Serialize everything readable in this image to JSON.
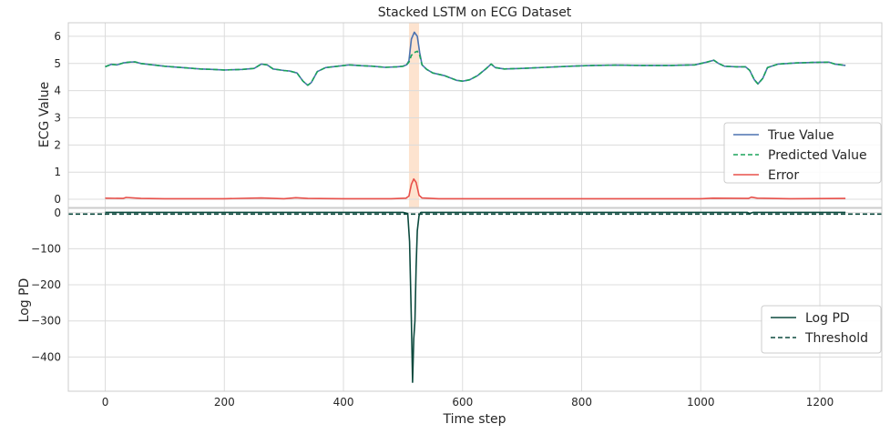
{
  "chart_data": [
    {
      "type": "line",
      "title": "Stacked LSTM on ECG Dataset",
      "xlabel": "",
      "ylabel": "ECG Value",
      "xlim": [
        -62,
        1304
      ],
      "ylim": [
        -0.3,
        6.5
      ],
      "xticks": [
        0,
        200,
        400,
        600,
        800,
        1000,
        1200
      ],
      "yticks": [
        0,
        1,
        2,
        3,
        4,
        5,
        6
      ],
      "grid": true,
      "legend_position": "center-right",
      "highlight_span": [
        510,
        527
      ],
      "highlight_color": "#fde3cf",
      "series": [
        {
          "name": "True Value",
          "color": "#4c72b0",
          "style": "solid",
          "points": [
            [
              0,
              4.88
            ],
            [
              10,
              4.97
            ],
            [
              20,
              4.95
            ],
            [
              30,
              5.02
            ],
            [
              40,
              5.05
            ],
            [
              50,
              5.06
            ],
            [
              60,
              5.0
            ],
            [
              80,
              4.95
            ],
            [
              100,
              4.9
            ],
            [
              130,
              4.85
            ],
            [
              160,
              4.8
            ],
            [
              180,
              4.78
            ],
            [
              200,
              4.76
            ],
            [
              230,
              4.78
            ],
            [
              250,
              4.82
            ],
            [
              262,
              4.98
            ],
            [
              272,
              4.95
            ],
            [
              282,
              4.8
            ],
            [
              300,
              4.74
            ],
            [
              310,
              4.72
            ],
            [
              322,
              4.65
            ],
            [
              332,
              4.35
            ],
            [
              340,
              4.2
            ],
            [
              346,
              4.3
            ],
            [
              356,
              4.7
            ],
            [
              370,
              4.85
            ],
            [
              390,
              4.9
            ],
            [
              410,
              4.95
            ],
            [
              430,
              4.92
            ],
            [
              450,
              4.9
            ],
            [
              470,
              4.86
            ],
            [
              490,
              4.88
            ],
            [
              500,
              4.9
            ],
            [
              506,
              4.95
            ],
            [
              510,
              5.1
            ],
            [
              514,
              5.9
            ],
            [
              519,
              6.15
            ],
            [
              524,
              6.0
            ],
            [
              528,
              5.4
            ],
            [
              532,
              4.95
            ],
            [
              540,
              4.78
            ],
            [
              550,
              4.65
            ],
            [
              570,
              4.55
            ],
            [
              590,
              4.38
            ],
            [
              600,
              4.35
            ],
            [
              612,
              4.4
            ],
            [
              625,
              4.55
            ],
            [
              640,
              4.82
            ],
            [
              648,
              4.98
            ],
            [
              655,
              4.85
            ],
            [
              670,
              4.8
            ],
            [
              700,
              4.82
            ],
            [
              740,
              4.86
            ],
            [
              780,
              4.9
            ],
            [
              820,
              4.93
            ],
            [
              860,
              4.94
            ],
            [
              900,
              4.93
            ],
            [
              950,
              4.93
            ],
            [
              990,
              4.95
            ],
            [
              1010,
              5.05
            ],
            [
              1022,
              5.12
            ],
            [
              1030,
              5.0
            ],
            [
              1040,
              4.9
            ],
            [
              1060,
              4.88
            ],
            [
              1075,
              4.88
            ],
            [
              1082,
              4.75
            ],
            [
              1090,
              4.4
            ],
            [
              1096,
              4.25
            ],
            [
              1104,
              4.45
            ],
            [
              1112,
              4.85
            ],
            [
              1130,
              4.98
            ],
            [
              1160,
              5.02
            ],
            [
              1190,
              5.04
            ],
            [
              1215,
              5.05
            ],
            [
              1225,
              4.98
            ],
            [
              1243,
              4.93
            ]
          ]
        },
        {
          "name": "Predicted Value",
          "color": "#1aa35a",
          "style": "dashed",
          "points": [
            [
              0,
              4.88
            ],
            [
              10,
              4.97
            ],
            [
              20,
              4.95
            ],
            [
              30,
              5.02
            ],
            [
              40,
              5.05
            ],
            [
              50,
              5.06
            ],
            [
              60,
              5.0
            ],
            [
              80,
              4.95
            ],
            [
              100,
              4.9
            ],
            [
              130,
              4.85
            ],
            [
              160,
              4.8
            ],
            [
              180,
              4.78
            ],
            [
              200,
              4.76
            ],
            [
              230,
              4.78
            ],
            [
              250,
              4.82
            ],
            [
              262,
              4.98
            ],
            [
              272,
              4.95
            ],
            [
              282,
              4.8
            ],
            [
              300,
              4.74
            ],
            [
              310,
              4.72
            ],
            [
              322,
              4.65
            ],
            [
              332,
              4.35
            ],
            [
              340,
              4.2
            ],
            [
              346,
              4.3
            ],
            [
              356,
              4.7
            ],
            [
              370,
              4.85
            ],
            [
              390,
              4.9
            ],
            [
              410,
              4.95
            ],
            [
              430,
              4.92
            ],
            [
              450,
              4.9
            ],
            [
              470,
              4.86
            ],
            [
              490,
              4.88
            ],
            [
              500,
              4.9
            ],
            [
              506,
              4.95
            ],
            [
              510,
              5.05
            ],
            [
              514,
              5.3
            ],
            [
              519,
              5.4
            ],
            [
              524,
              5.45
            ],
            [
              528,
              5.3
            ],
            [
              532,
              4.95
            ],
            [
              540,
              4.78
            ],
            [
              550,
              4.65
            ],
            [
              570,
              4.55
            ],
            [
              590,
              4.38
            ],
            [
              600,
              4.35
            ],
            [
              612,
              4.4
            ],
            [
              625,
              4.55
            ],
            [
              640,
              4.82
            ],
            [
              648,
              4.98
            ],
            [
              655,
              4.85
            ],
            [
              670,
              4.8
            ],
            [
              700,
              4.82
            ],
            [
              740,
              4.86
            ],
            [
              780,
              4.9
            ],
            [
              820,
              4.93
            ],
            [
              860,
              4.94
            ],
            [
              900,
              4.93
            ],
            [
              950,
              4.93
            ],
            [
              990,
              4.95
            ],
            [
              1010,
              5.05
            ],
            [
              1022,
              5.12
            ],
            [
              1030,
              5.0
            ],
            [
              1040,
              4.9
            ],
            [
              1060,
              4.88
            ],
            [
              1075,
              4.88
            ],
            [
              1082,
              4.75
            ],
            [
              1090,
              4.4
            ],
            [
              1096,
              4.25
            ],
            [
              1104,
              4.45
            ],
            [
              1112,
              4.85
            ],
            [
              1130,
              4.98
            ],
            [
              1160,
              5.02
            ],
            [
              1190,
              5.04
            ],
            [
              1215,
              5.05
            ],
            [
              1225,
              4.98
            ],
            [
              1243,
              4.93
            ]
          ]
        },
        {
          "name": "Error",
          "color": "#e8504a",
          "style": "solid",
          "points": [
            [
              0,
              0.04
            ],
            [
              30,
              0.03
            ],
            [
              35,
              0.07
            ],
            [
              60,
              0.03
            ],
            [
              100,
              0.02
            ],
            [
              200,
              0.02
            ],
            [
              262,
              0.05
            ],
            [
              300,
              0.02
            ],
            [
              320,
              0.06
            ],
            [
              340,
              0.03
            ],
            [
              400,
              0.02
            ],
            [
              480,
              0.02
            ],
            [
              505,
              0.04
            ],
            [
              510,
              0.12
            ],
            [
              514,
              0.55
            ],
            [
              518,
              0.75
            ],
            [
              522,
              0.62
            ],
            [
              527,
              0.15
            ],
            [
              532,
              0.05
            ],
            [
              560,
              0.02
            ],
            [
              600,
              0.02
            ],
            [
              700,
              0.02
            ],
            [
              800,
              0.02
            ],
            [
              900,
              0.02
            ],
            [
              1000,
              0.02
            ],
            [
              1020,
              0.04
            ],
            [
              1080,
              0.03
            ],
            [
              1085,
              0.08
            ],
            [
              1095,
              0.04
            ],
            [
              1150,
              0.02
            ],
            [
              1243,
              0.03
            ]
          ]
        }
      ]
    },
    {
      "type": "line",
      "title": "",
      "xlabel": "Time step",
      "ylabel": "Log PD",
      "xlim": [
        -62,
        1304
      ],
      "ylim": [
        -495,
        12
      ],
      "xticks": [
        0,
        200,
        400,
        600,
        800,
        1000,
        1200
      ],
      "yticks": [
        0,
        -100,
        -200,
        -300,
        -400
      ],
      "grid": true,
      "legend_position": "center-right",
      "series": [
        {
          "name": "Log PD",
          "color": "#0d4a3e",
          "style": "solid",
          "points": [
            [
              0,
              1
            ],
            [
              100,
              1
            ],
            [
              200,
              1
            ],
            [
              300,
              1
            ],
            [
              400,
              1
            ],
            [
              500,
              1
            ],
            [
              508,
              -2
            ],
            [
              511,
              -80
            ],
            [
              514,
              -300
            ],
            [
              516,
              -470
            ],
            [
              518,
              -350
            ],
            [
              520,
              -300
            ],
            [
              522,
              -150
            ],
            [
              524,
              -50
            ],
            [
              527,
              -8
            ],
            [
              530,
              1
            ],
            [
              560,
              1
            ],
            [
              600,
              1
            ],
            [
              700,
              1
            ],
            [
              800,
              1
            ],
            [
              900,
              1
            ],
            [
              1000,
              1
            ],
            [
              1078,
              1
            ],
            [
              1082,
              -2
            ],
            [
              1088,
              1
            ],
            [
              1100,
              1
            ],
            [
              1243,
              1
            ]
          ]
        },
        {
          "name": "Threshold",
          "color": "#0d4a3e",
          "style": "dashed",
          "points": [
            [
              -62,
              -4
            ],
            [
              1304,
              -4
            ]
          ]
        }
      ]
    }
  ]
}
